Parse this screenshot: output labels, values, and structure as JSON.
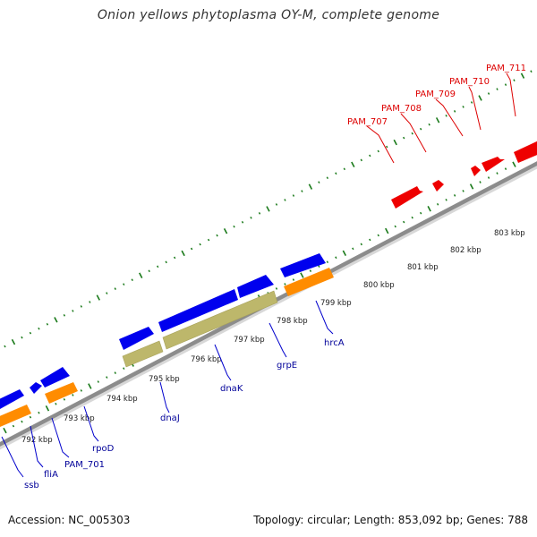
{
  "title": "Onion yellows phytoplasma OY-M, complete genome",
  "footer": {
    "accession": "Accession: NC_005303",
    "summary": "Topology: circular; Length: 853,092 bp; Genes: 788"
  },
  "colors": {
    "backbone": "#8c8c8c",
    "tick": "#1a7a1a",
    "red_feature": "#ee0000",
    "red_label": "#dd0000",
    "blue_feature": "#0000ee",
    "blue_label": "#000099",
    "orange_feature": "#ff8c00",
    "khaki_feature": "#bdb76b"
  },
  "ruler_labels": [
    {
      "text": "792 kbp",
      "name": "tick-label-792"
    },
    {
      "text": "793 kbp",
      "name": "tick-label-793"
    },
    {
      "text": "794 kbp",
      "name": "tick-label-794"
    },
    {
      "text": "795 kbp",
      "name": "tick-label-795"
    },
    {
      "text": "796 kbp",
      "name": "tick-label-796"
    },
    {
      "text": "797 kbp",
      "name": "tick-label-797"
    },
    {
      "text": "798 kbp",
      "name": "tick-label-798"
    },
    {
      "text": "799 kbp",
      "name": "tick-label-799"
    },
    {
      "text": "800 kbp",
      "name": "tick-label-800"
    },
    {
      "text": "801 kbp",
      "name": "tick-label-801"
    },
    {
      "text": "802 kbp",
      "name": "tick-label-802"
    },
    {
      "text": "803 kbp",
      "name": "tick-label-803"
    }
  ],
  "gene_labels": [
    {
      "text": "PAM_707",
      "name": "gene-label-pam-707",
      "group": "red"
    },
    {
      "text": "PAM_708",
      "name": "gene-label-pam-708",
      "group": "red"
    },
    {
      "text": "PAM_709",
      "name": "gene-label-pam-709",
      "group": "red"
    },
    {
      "text": "PAM_710",
      "name": "gene-label-pam-710",
      "group": "red"
    },
    {
      "text": "PAM_711",
      "name": "gene-label-pam-711",
      "group": "red"
    },
    {
      "text": "ssb",
      "name": "gene-label-ssb",
      "group": "blue"
    },
    {
      "text": "fliA",
      "name": "gene-label-flia",
      "group": "blue"
    },
    {
      "text": "PAM_701",
      "name": "gene-label-pam-701",
      "group": "blue"
    },
    {
      "text": "rpoD",
      "name": "gene-label-rpod",
      "group": "blue"
    },
    {
      "text": "dnaJ",
      "name": "gene-label-dnaj",
      "group": "blue"
    },
    {
      "text": "dnaK",
      "name": "gene-label-dnak",
      "group": "blue"
    },
    {
      "text": "grpE",
      "name": "gene-label-grpe",
      "group": "blue"
    },
    {
      "text": "hrcA",
      "name": "gene-label-hrca",
      "group": "blue"
    }
  ]
}
